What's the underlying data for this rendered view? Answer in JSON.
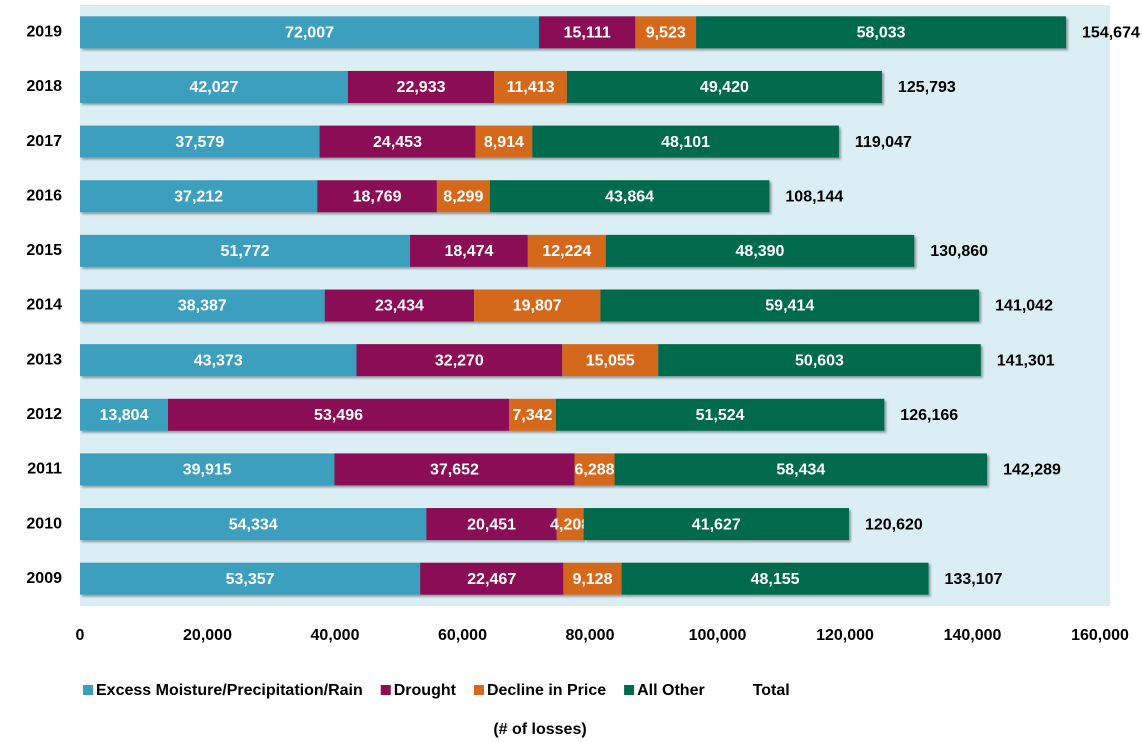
{
  "chart_data": {
    "type": "stacked-bar-horizontal",
    "categories": [
      "2019",
      "2018",
      "2017",
      "2016",
      "2015",
      "2014",
      "2013",
      "2012",
      "2011",
      "2010",
      "2009"
    ],
    "series": [
      {
        "name": "Excess Moisture/Precipitation/Rain",
        "color": "#3a9fbd",
        "values": [
          72007,
          42027,
          37579,
          37212,
          51772,
          38387,
          43373,
          13804,
          39915,
          54334,
          53357
        ],
        "value_labels": [
          "72,007",
          "42,027",
          "37,579",
          "37,212",
          "51,772",
          "38,387",
          "43,373",
          "13,804",
          "39,915",
          "54,334",
          "53,357"
        ]
      },
      {
        "name": "Drought",
        "color": "#8a0f56",
        "values": [
          15111,
          22933,
          24453,
          18769,
          18474,
          23434,
          32270,
          53496,
          37652,
          20451,
          22467
        ],
        "value_labels": [
          "15,111",
          "22,933",
          "24,453",
          "18,769",
          "18,474",
          "23,434",
          "32,270",
          "53,496",
          "37,652",
          "20,451",
          "22,467"
        ]
      },
      {
        "name": "Decline in Price",
        "color": "#d4691f",
        "values": [
          9523,
          11413,
          8914,
          8299,
          12224,
          19807,
          15055,
          7342,
          6288,
          4208,
          9128
        ],
        "value_labels": [
          "9,523",
          "11,413",
          "8,914",
          "8,299",
          "12,224",
          "19,807",
          "15,055",
          "7,342",
          "6,288",
          "4,208",
          "9,128"
        ]
      },
      {
        "name": "All Other",
        "color": "#006a4e",
        "values": [
          58033,
          49420,
          48101,
          43864,
          48390,
          59414,
          50603,
          51524,
          58434,
          41627,
          48155
        ],
        "value_labels": [
          "58,033",
          "49,420",
          "48,101",
          "43,864",
          "48,390",
          "59,414",
          "50,603",
          "51,524",
          "58,434",
          "41,627",
          "48,155"
        ]
      },
      {
        "name": "Total",
        "values": [
          154674,
          125793,
          119047,
          108144,
          130860,
          141042,
          141301,
          126166,
          142289,
          120620,
          133107
        ],
        "value_labels": [
          "154,674",
          "125,793",
          "119,047",
          "108,144",
          "130,860",
          "141,042",
          "141,301",
          "126,166",
          "142,289",
          "120,620",
          "133,107"
        ]
      }
    ],
    "x_label": "(# of losses)",
    "xlim": [
      0,
      160000
    ],
    "xticks": [
      0,
      {
        "value": 20000,
        "label": "20,000"
      },
      {
        "value": 40000,
        "label": "40,000"
      },
      {
        "value": 60000,
        "label": "60,000"
      },
      {
        "value": 80000,
        "label": "80,000"
      },
      {
        "value": 100000,
        "label": "100,000"
      },
      {
        "value": 120000,
        "label": "120,000"
      },
      {
        "value": 140000,
        "label": "140,000"
      },
      {
        "value": 160000,
        "label": "160,000"
      }
    ],
    "legend": "bottom",
    "background": "#dbeef4"
  }
}
